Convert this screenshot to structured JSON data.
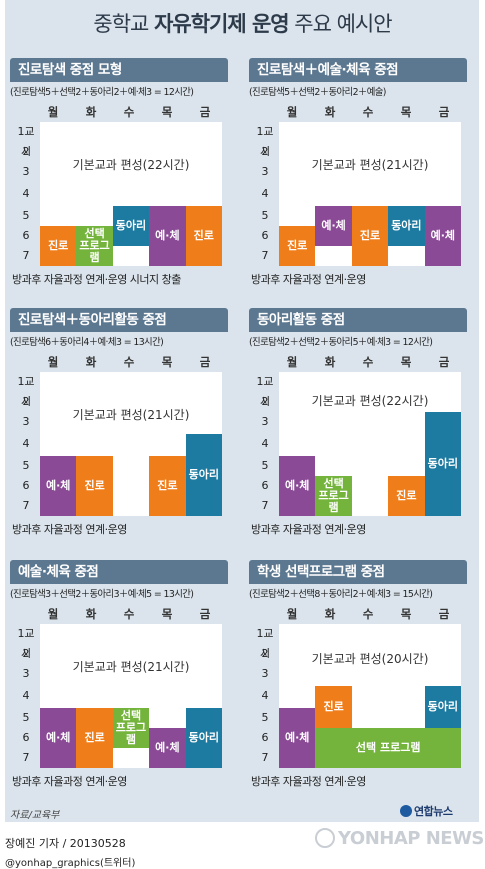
{
  "title": {
    "prefix": "중학교 ",
    "bold": "자유학기제 운영",
    "suffix": " 주요 예시안"
  },
  "days": [
    "월",
    "화",
    "수",
    "목",
    "금"
  ],
  "periods": [
    "1교시",
    "2",
    "3",
    "4",
    "5",
    "6",
    "7"
  ],
  "colors": {
    "orange": "#ef7d1a",
    "green": "#74b43c",
    "blue": "#1d7aa0",
    "purple": "#8a4a96",
    "header": "#5c7890",
    "background": "#dbe4ec"
  },
  "panels": [
    {
      "heading": "진로탐색 중점 모형",
      "subtitle": "(진로탐색5＋선택2＋동아리2＋예·체3 = 12시간)",
      "core": "기본교과 편성(22시간)",
      "footer": "방과후  자율과정 연계·운영 시너지 창출",
      "blocks": [
        {
          "label": "진로",
          "day": 0,
          "start": 6,
          "end": 7,
          "color": "orange"
        },
        {
          "label": "선택\n프로그램",
          "day": 1,
          "start": 6,
          "end": 7,
          "color": "green"
        },
        {
          "label": "동아리",
          "day": 2,
          "start": 5,
          "end": 6,
          "color": "blue"
        },
        {
          "label": "예·체",
          "day": 3,
          "start": 5,
          "end": 7,
          "color": "purple"
        },
        {
          "label": "진로",
          "day": 4,
          "start": 5,
          "end": 7,
          "color": "orange"
        }
      ]
    },
    {
      "heading": "진로탐색＋예술·체육 중점",
      "subtitle": "(진로탐색5＋선택2＋동아리2＋예술)",
      "core": "기본교과 편성(21시간)",
      "footer": "방과후  자율과정 연계·운영",
      "blocks": [
        {
          "label": "진로",
          "day": 0,
          "start": 6,
          "end": 7,
          "color": "orange"
        },
        {
          "label": "예·체",
          "day": 1,
          "start": 5,
          "end": 6,
          "color": "purple"
        },
        {
          "label": "진로",
          "day": 2,
          "start": 5,
          "end": 7,
          "color": "orange"
        },
        {
          "label": "동아리",
          "day": 3,
          "start": 5,
          "end": 6,
          "color": "blue"
        },
        {
          "label": "예·체",
          "day": 4,
          "start": 5,
          "end": 7,
          "color": "purple"
        }
      ]
    },
    {
      "heading": "진로탐색＋동아리활동 중점",
      "subtitle": "(진로탐색6＋동아리4＋예·체3 = 13시간)",
      "core": "기본교과 편성(21시간)",
      "footer": "방과후  자율과정 연계·운영",
      "blocks": [
        {
          "label": "예·체",
          "day": 0,
          "start": 5,
          "end": 7,
          "color": "purple"
        },
        {
          "label": "진로",
          "day": 1,
          "start": 5,
          "end": 7,
          "color": "orange"
        },
        {
          "label": "진로",
          "day": 3,
          "start": 5,
          "end": 7,
          "color": "orange"
        },
        {
          "label": "동아리",
          "day": 4,
          "start": 4,
          "end": 7,
          "color": "blue"
        }
      ]
    },
    {
      "heading": "동아리활동 중점",
      "subtitle": "(진로탐색2＋선택2＋동아리5＋예·체3 = 12시간)",
      "core": "기본교과 편성(22시간)",
      "footer": "방과후  자율과정 연계·운영",
      "blocks": [
        {
          "label": "예·체",
          "day": 0,
          "start": 5,
          "end": 7,
          "color": "purple"
        },
        {
          "label": "선택\n프로그램",
          "day": 1,
          "start": 6,
          "end": 7,
          "color": "green"
        },
        {
          "label": "진로",
          "day": 3,
          "start": 6,
          "end": 7,
          "color": "orange"
        },
        {
          "label": "동아리",
          "day": 4,
          "start": 3,
          "end": 7,
          "color": "blue"
        }
      ]
    },
    {
      "heading": "예술·체육 중점",
      "subtitle": "(진로탐색3＋선택2＋동아리3＋예·체5 = 13시간)",
      "core": "기본교과 편성(21시간)",
      "footer": "방과후  자율과정 연계·운영",
      "blocks": [
        {
          "label": "예·체",
          "day": 0,
          "start": 5,
          "end": 7,
          "color": "purple"
        },
        {
          "label": "진로",
          "day": 1,
          "start": 5,
          "end": 7,
          "color": "orange"
        },
        {
          "label": "선택\n프로그램",
          "day": 2,
          "start": 5,
          "end": 6,
          "color": "green"
        },
        {
          "label": "예·체",
          "day": 3,
          "start": 6,
          "end": 7,
          "color": "purple"
        },
        {
          "label": "동아리",
          "day": 4,
          "start": 5,
          "end": 7,
          "color": "blue"
        }
      ]
    },
    {
      "heading": "학생 선택프로그램 중점",
      "subtitle": "(진로탐색2＋선택8＋동아리2＋예·체3 = 15시간)",
      "core": "기본교과 편성(20시간)",
      "footer": "방과후  자율과정 연계·운영",
      "blocks": [
        {
          "label": "예·체",
          "day": 0,
          "start": 5,
          "end": 7,
          "color": "purple"
        },
        {
          "label": "진로",
          "day": 1,
          "start": 4,
          "end": 5,
          "color": "orange"
        },
        {
          "label": "동아리",
          "day": 4,
          "start": 4,
          "end": 5,
          "color": "blue"
        },
        {
          "label": "선택 프로그램",
          "day": 1,
          "dayEnd": 4,
          "start": 6,
          "end": 7,
          "color": "green"
        }
      ]
    }
  ],
  "source": "자료/교육부",
  "logo": "연합뉴스",
  "credit": "장예진 기자 / 20130528",
  "handle": "@yonhap_graphics(트위터)",
  "watermark": "YONHAP NEWS"
}
